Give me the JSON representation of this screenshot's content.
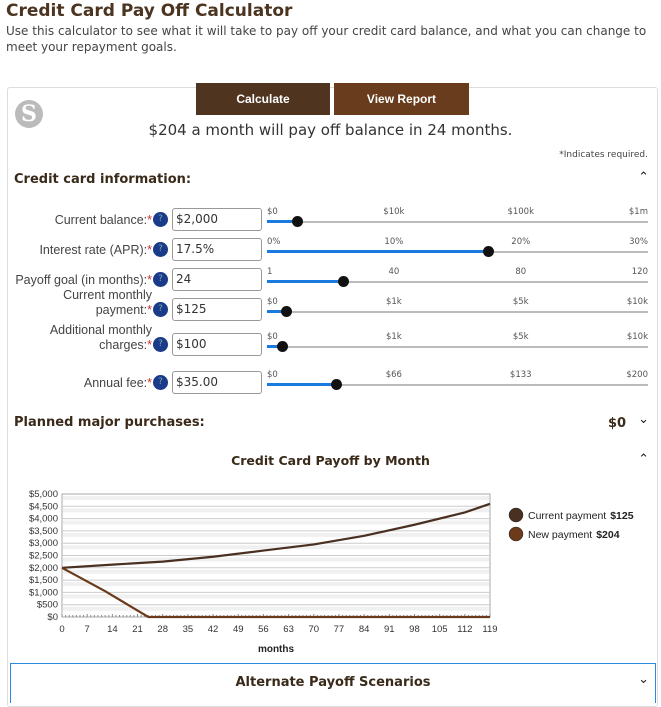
{
  "header": {
    "title": "Credit Card Pay Off Calculator",
    "description": "Use this calculator to see what it will take to pay off your credit card balance, and what you can change to meet your repayment goals."
  },
  "buttons": {
    "calculate": "Calculate",
    "view_report": "View Report"
  },
  "logo_text": "S",
  "result": "$204 a month will pay off balance in 24 months.",
  "required_note": "*Indicates required.",
  "sections": {
    "card_info": "Credit card information:",
    "planned": "Planned major purchases:",
    "planned_value": "$0",
    "chart": "Credit Card Payoff by Month",
    "alternate": "Alternate Payoff Scenarios"
  },
  "fields": [
    {
      "label": "Current balance:",
      "value": "$2,000",
      "ticks": [
        "$0",
        "$10k",
        "$100k",
        "$1m"
      ],
      "fraction": 0.08
    },
    {
      "label": "Interest rate (APR):",
      "value": "17.5%",
      "ticks": [
        "0%",
        "10%",
        "20%",
        "30%"
      ],
      "fraction": 0.58
    },
    {
      "label": "Payoff goal (in months):",
      "value": "24",
      "ticks": [
        "1",
        "40",
        "80",
        "120"
      ],
      "fraction": 0.2
    },
    {
      "label": "Current monthly payment:",
      "value": "$125",
      "ticks": [
        "$0",
        "$1k",
        "$5k",
        "$10k"
      ],
      "fraction": 0.05
    },
    {
      "label": "Additional monthly charges:",
      "value": "$100",
      "ticks": [
        "$0",
        "$1k",
        "$5k",
        "$10k"
      ],
      "fraction": 0.04
    },
    {
      "label": "Annual fee:",
      "value": "$35.00",
      "ticks": [
        "$0",
        "$66",
        "$133",
        "$200"
      ],
      "fraction": 0.18
    }
  ],
  "help_glyph": "?",
  "required_mark": "*",
  "chart_data": {
    "type": "line",
    "title": "Credit Card Payoff by Month",
    "xlabel": "months",
    "ylabel": "",
    "xlim": [
      0,
      119
    ],
    "ylim": [
      0,
      5000
    ],
    "xticks": [
      "0",
      "7",
      "14",
      "21",
      "28",
      "35",
      "42",
      "49",
      "56",
      "63",
      "70",
      "77",
      "84",
      "91",
      "98",
      "105",
      "112",
      "119"
    ],
    "yticks": [
      "$0",
      "$500",
      "$1,000",
      "$1,500",
      "$2,000",
      "$2,500",
      "$3,000",
      "$3,500",
      "$4,000",
      "$4,500",
      "$5,000"
    ],
    "series": [
      {
        "name": "Current payment",
        "amount": "$125",
        "color": "#4a3020",
        "x": [
          0,
          14,
          28,
          42,
          56,
          70,
          84,
          98,
          112,
          119
        ],
        "y": [
          2000,
          2130,
          2250,
          2450,
          2700,
          2950,
          3300,
          3750,
          4250,
          4600
        ]
      },
      {
        "name": "New payment",
        "amount": "$204",
        "color": "#6b3a1a",
        "x": [
          0,
          12,
          24,
          119
        ],
        "y": [
          2000,
          1050,
          0,
          0
        ]
      }
    ],
    "legend": "right"
  },
  "colors": {
    "btn1": "#4f3420",
    "btn2": "#683c1c",
    "accent": "#1a7ae0"
  }
}
